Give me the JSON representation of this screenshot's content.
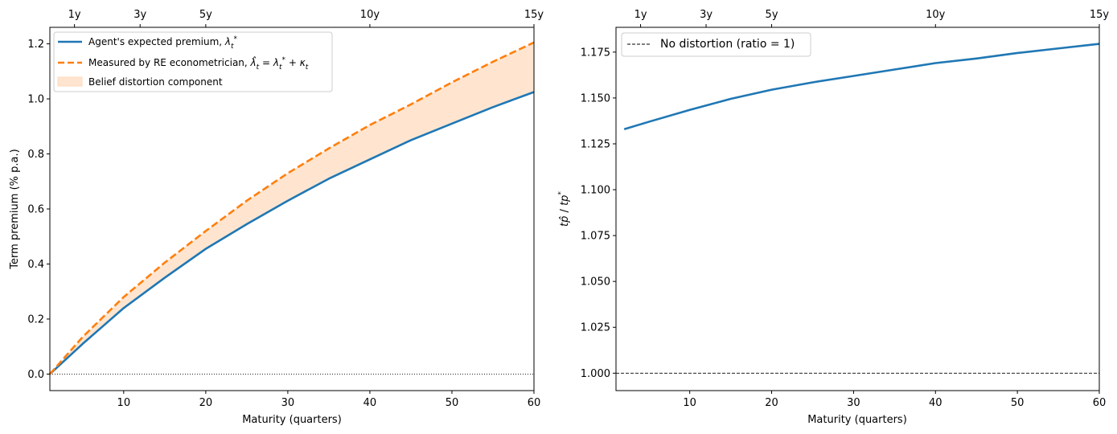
{
  "chart_data": [
    {
      "type": "line",
      "xlabel": "Maturity (quarters)",
      "ylabel": "Term premium (% p.a.)",
      "xlim": [
        1,
        60
      ],
      "ylim": [
        -0.06,
        1.26
      ],
      "x_ticks": [
        10,
        20,
        30,
        40,
        50,
        60
      ],
      "y_ticks": [
        0.0,
        0.2,
        0.4,
        0.6,
        0.8,
        1.0,
        1.2
      ],
      "top_axis": {
        "ticks": [
          4,
          12,
          20,
          40,
          60
        ],
        "labels": [
          "1y",
          "3y",
          "5y",
          "10y",
          "15y"
        ]
      },
      "reference_line": {
        "y": 0.0,
        "style": "dotted",
        "color": "#000000"
      },
      "legend": {
        "placement": "upper-left",
        "entries": [
          {
            "label": "Agent's expected premium, λ*_t"
          },
          {
            "label": "Measured by RE econometrician, λ̂_t = λ*_t + κ_t"
          },
          {
            "label": "Belief distortion component"
          }
        ]
      },
      "series": [
        {
          "name": "Agent's expected premium, λ*_t",
          "color": "#1f77b4",
          "style": "solid",
          "x": [
            1,
            5,
            10,
            15,
            20,
            25,
            30,
            35,
            40,
            45,
            50,
            55,
            60
          ],
          "values": [
            0.0,
            0.11,
            0.24,
            0.35,
            0.455,
            0.545,
            0.63,
            0.71,
            0.78,
            0.85,
            0.91,
            0.97,
            1.025
          ]
        },
        {
          "name": "Measured by RE econometrician, λ̂_t = λ*_t + κ_t",
          "color": "#ff7f0e",
          "style": "dashed",
          "x": [
            1,
            5,
            10,
            15,
            20,
            25,
            30,
            35,
            40,
            45,
            50,
            55,
            60
          ],
          "values": [
            0.0,
            0.135,
            0.28,
            0.405,
            0.52,
            0.63,
            0.73,
            0.82,
            0.905,
            0.98,
            1.06,
            1.135,
            1.205
          ]
        }
      ],
      "fill": {
        "name": "Belief distortion component",
        "between": [
          0,
          1
        ],
        "color": "#ffe5d0"
      }
    },
    {
      "type": "line",
      "xlabel": "Maturity (quarters)",
      "ylabel": "tp̂ / tp*",
      "xlim": [
        1,
        60
      ],
      "ylim": [
        0.9905,
        1.1885
      ],
      "x_ticks": [
        10,
        20,
        30,
        40,
        50,
        60
      ],
      "y_ticks": [
        1.0,
        1.025,
        1.05,
        1.075,
        1.1,
        1.125,
        1.15,
        1.175
      ],
      "y_tick_labels": [
        "1.000",
        "1.025",
        "1.050",
        "1.075",
        "1.100",
        "1.125",
        "1.150",
        "1.175"
      ],
      "top_axis": {
        "ticks": [
          4,
          12,
          20,
          40,
          60
        ],
        "labels": [
          "1y",
          "3y",
          "5y",
          "10y",
          "15y"
        ]
      },
      "reference_line": {
        "y": 1.0,
        "style": "dashed",
        "color": "#000000",
        "label": "No distortion (ratio = 1)"
      },
      "legend": {
        "placement": "upper-left",
        "entries": [
          {
            "label": "No distortion (ratio = 1)"
          }
        ]
      },
      "series": [
        {
          "name": "",
          "color": "#1f77b4",
          "style": "solid",
          "x": [
            2,
            5,
            10,
            15,
            20,
            25,
            30,
            35,
            40,
            45,
            50,
            55,
            60
          ],
          "values": [
            1.133,
            1.137,
            1.1435,
            1.1495,
            1.1545,
            1.1585,
            1.162,
            1.1655,
            1.169,
            1.1715,
            1.1745,
            1.177,
            1.1795
          ]
        }
      ]
    }
  ]
}
